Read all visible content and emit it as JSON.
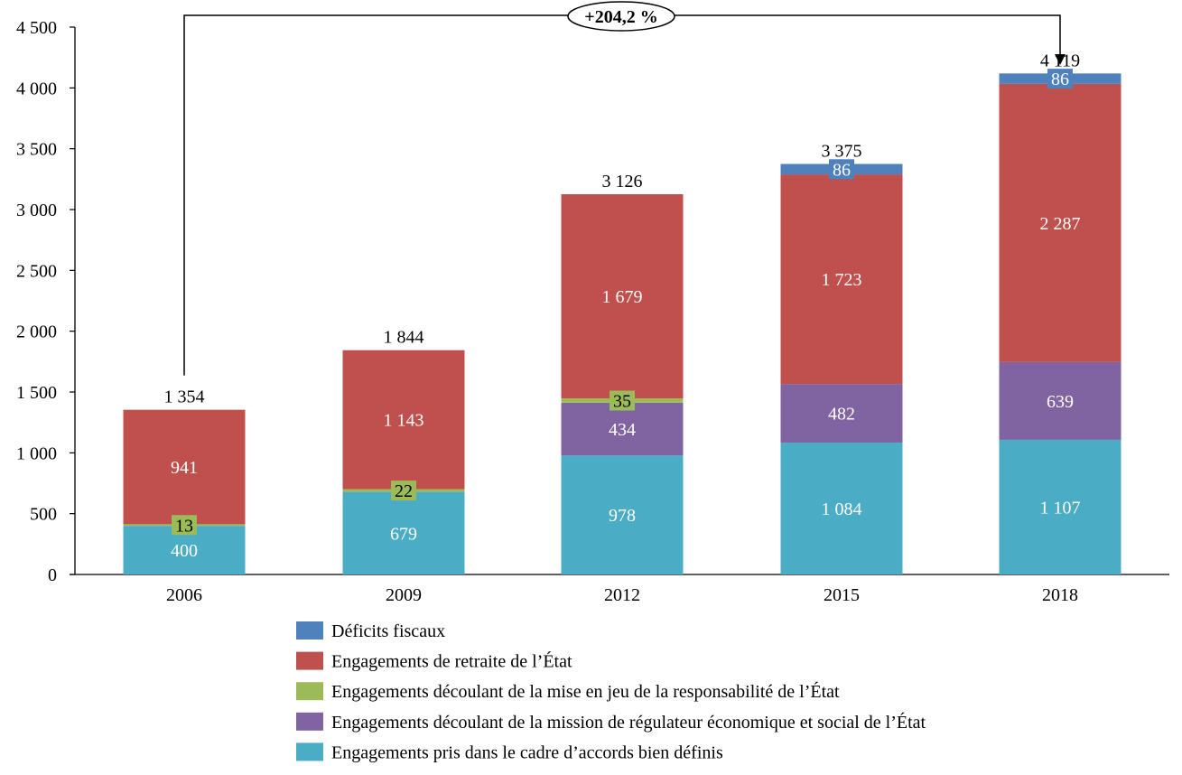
{
  "chart_data": {
    "type": "bar",
    "stacked": true,
    "title": "",
    "xlabel": "",
    "ylabel": "",
    "ylim": [
      0,
      4500
    ],
    "yticks": [
      0,
      500,
      1000,
      1500,
      2000,
      2500,
      3000,
      3500,
      4000,
      4500
    ],
    "ytick_labels": [
      "0",
      "500",
      "1 000",
      "1 500",
      "2 000",
      "2 500",
      "3 000",
      "3 500",
      "4 000",
      "4 500"
    ],
    "grid": false,
    "categories": [
      "2006",
      "2009",
      "2012",
      "2015",
      "2018"
    ],
    "series": [
      {
        "name": "Engagements pris dans le cadre d’accords bien définis",
        "color": "#4bacc6",
        "label_color": "#ffffff",
        "values": [
          400,
          679,
          978,
          1084,
          1107
        ],
        "labels": [
          "400",
          "679",
          "978",
          "1 084",
          "1 107"
        ]
      },
      {
        "name": "Engagements découlant de la mission de régulateur économique et social de l’État",
        "color": "#8064a2",
        "label_color": "#ffffff",
        "values": [
          0,
          0,
          434,
          482,
          639
        ],
        "labels": [
          "",
          "",
          "434",
          "482",
          "639"
        ]
      },
      {
        "name": "Engagements découlant de la mise en jeu de la responsabilité de l’État",
        "color": "#9bbb59",
        "label_color": "#000000",
        "values": [
          13,
          22,
          35,
          0,
          0
        ],
        "labels": [
          "13",
          "22",
          "35",
          "",
          ""
        ]
      },
      {
        "name": "Engagements de retraite de l’État",
        "color": "#c0504d",
        "label_color": "#ffffff",
        "values": [
          941,
          1143,
          1679,
          1723,
          2287
        ],
        "labels": [
          "941",
          "1 143",
          "1 679",
          "1 723",
          "2 287"
        ]
      },
      {
        "name": "Déficits fiscaux",
        "color": "#4f81bd",
        "label_color": "#ffffff",
        "values": [
          0,
          0,
          0,
          86,
          86
        ],
        "labels": [
          "",
          "",
          "",
          "86",
          "86"
        ]
      }
    ],
    "totals": [
      1354,
      1844,
      3126,
      3375,
      4119
    ],
    "total_labels": [
      "1 354",
      "1 844",
      "3 126",
      "3 375",
      "4 119"
    ],
    "annotation": {
      "text": "+204,2 %",
      "from": "2006",
      "to": "2018"
    },
    "legend_order": [
      4,
      3,
      2,
      1,
      0
    ],
    "legend_position": "bottom"
  }
}
